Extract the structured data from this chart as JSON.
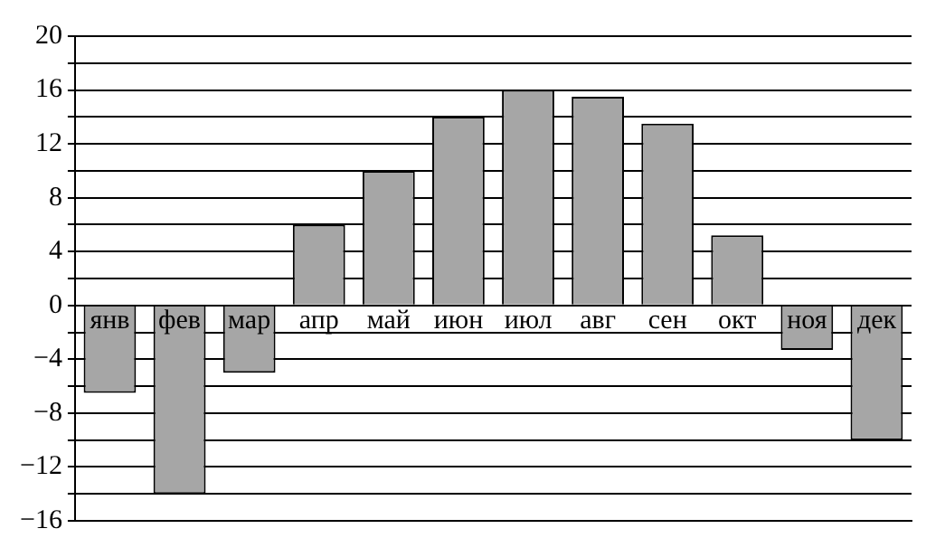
{
  "chart_data": {
    "type": "bar",
    "categories": [
      "янв",
      "фев",
      "мар",
      "апр",
      "май",
      "июн",
      "июл",
      "авг",
      "сен",
      "окт",
      "ноя",
      "дек"
    ],
    "values": [
      -6.5,
      -14,
      -5,
      6,
      10,
      14,
      16,
      15.5,
      13.5,
      5.2,
      -3.3,
      -10
    ],
    "color": "#a6a6a6",
    "ylim": [
      -16,
      20
    ],
    "yticks": [
      -16,
      {
        "value": -14,
        "label": null
      },
      -12,
      {
        "value": -10,
        "label": null
      },
      -8,
      {
        "value": -6,
        "label": null
      },
      -4,
      {
        "value": -2,
        "label": null
      },
      0,
      {
        "value": 2,
        "label": null
      },
      4,
      {
        "value": 6,
        "label": null
      },
      8,
      {
        "value": 10,
        "label": null
      },
      12,
      {
        "value": 14,
        "label": null
      },
      16,
      {
        "value": 18,
        "label": null
      },
      20
    ],
    "grid": true
  }
}
